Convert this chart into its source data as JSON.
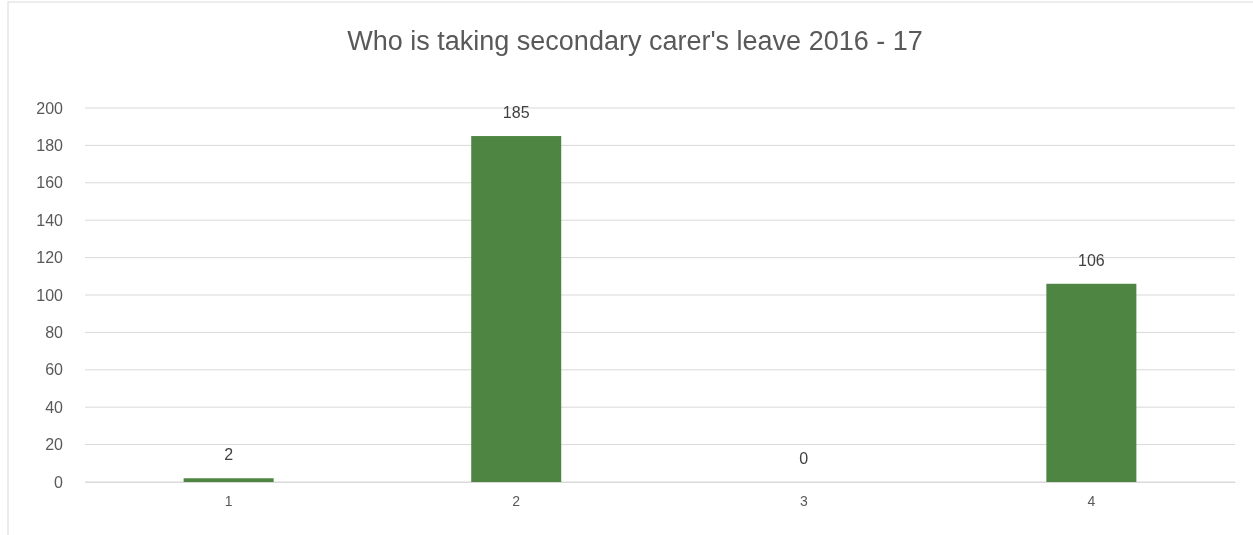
{
  "chart_data": {
    "type": "bar",
    "title": "Who is taking secondary carer's leave 2016 - 17",
    "categories": [
      "1",
      "2",
      "3",
      "4"
    ],
    "values": [
      2,
      185,
      0,
      106
    ],
    "color": "#4e8542",
    "ylim": [
      0,
      200
    ],
    "yticks": [
      0,
      20,
      40,
      60,
      80,
      100,
      120,
      140,
      160,
      180,
      200
    ],
    "grid": "y",
    "data_labels": true
  }
}
